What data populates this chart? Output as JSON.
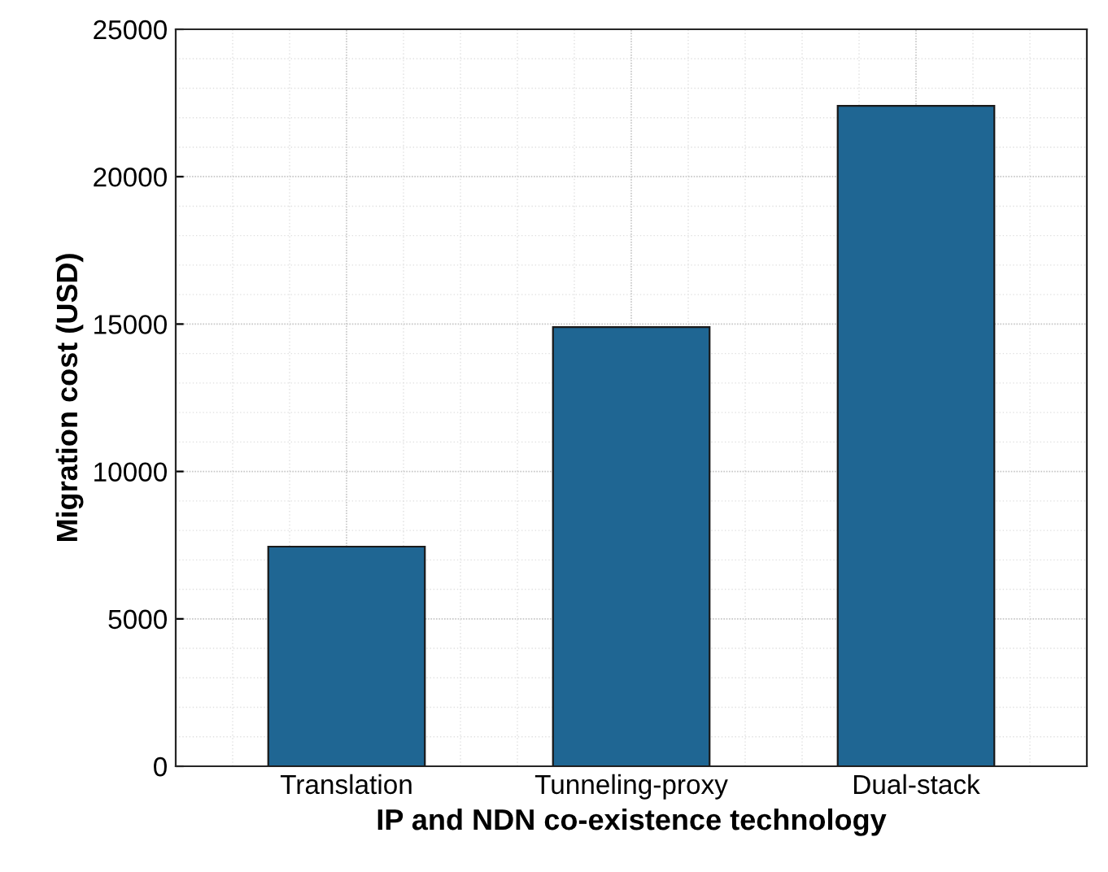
{
  "chart_data": {
    "type": "bar",
    "xlabel": "IP and NDN co-existence technology",
    "ylabel": "Migration cost (USD)",
    "categories": [
      "Translation",
      "Tunneling-proxy",
      "Dual-stack"
    ],
    "values": [
      7450,
      14900,
      22400
    ],
    "color": "#1f6693",
    "ylim": [
      0,
      25000
    ],
    "yticks": [
      0,
      5000,
      10000,
      15000,
      20000,
      25000
    ],
    "grid": true
  }
}
